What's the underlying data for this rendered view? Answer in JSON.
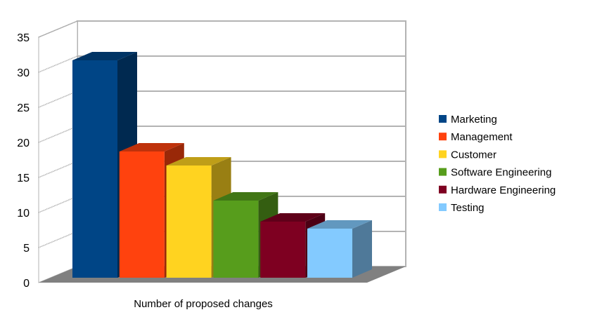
{
  "chart_data": {
    "type": "bar",
    "style": "3d",
    "categories": [
      "Number of proposed changes"
    ],
    "xlabel": "Number of proposed changes",
    "ylabel": "",
    "ylim": [
      0,
      35
    ],
    "yticks": [
      0,
      5,
      10,
      15,
      20,
      25,
      30,
      35
    ],
    "grid": true,
    "legend_position": "right",
    "series": [
      {
        "name": "Marketing",
        "values": [
          31
        ],
        "color": "#004586"
      },
      {
        "name": "Management",
        "values": [
          18
        ],
        "color": "#ff420e"
      },
      {
        "name": "Customer",
        "values": [
          16
        ],
        "color": "#ffd320"
      },
      {
        "name": "Software Engineering",
        "values": [
          11
        ],
        "color": "#579d1c"
      },
      {
        "name": "Hardware Engineering",
        "values": [
          8
        ],
        "color": "#7e0021"
      },
      {
        "name": "Testing",
        "values": [
          7
        ],
        "color": "#83caff"
      }
    ]
  }
}
